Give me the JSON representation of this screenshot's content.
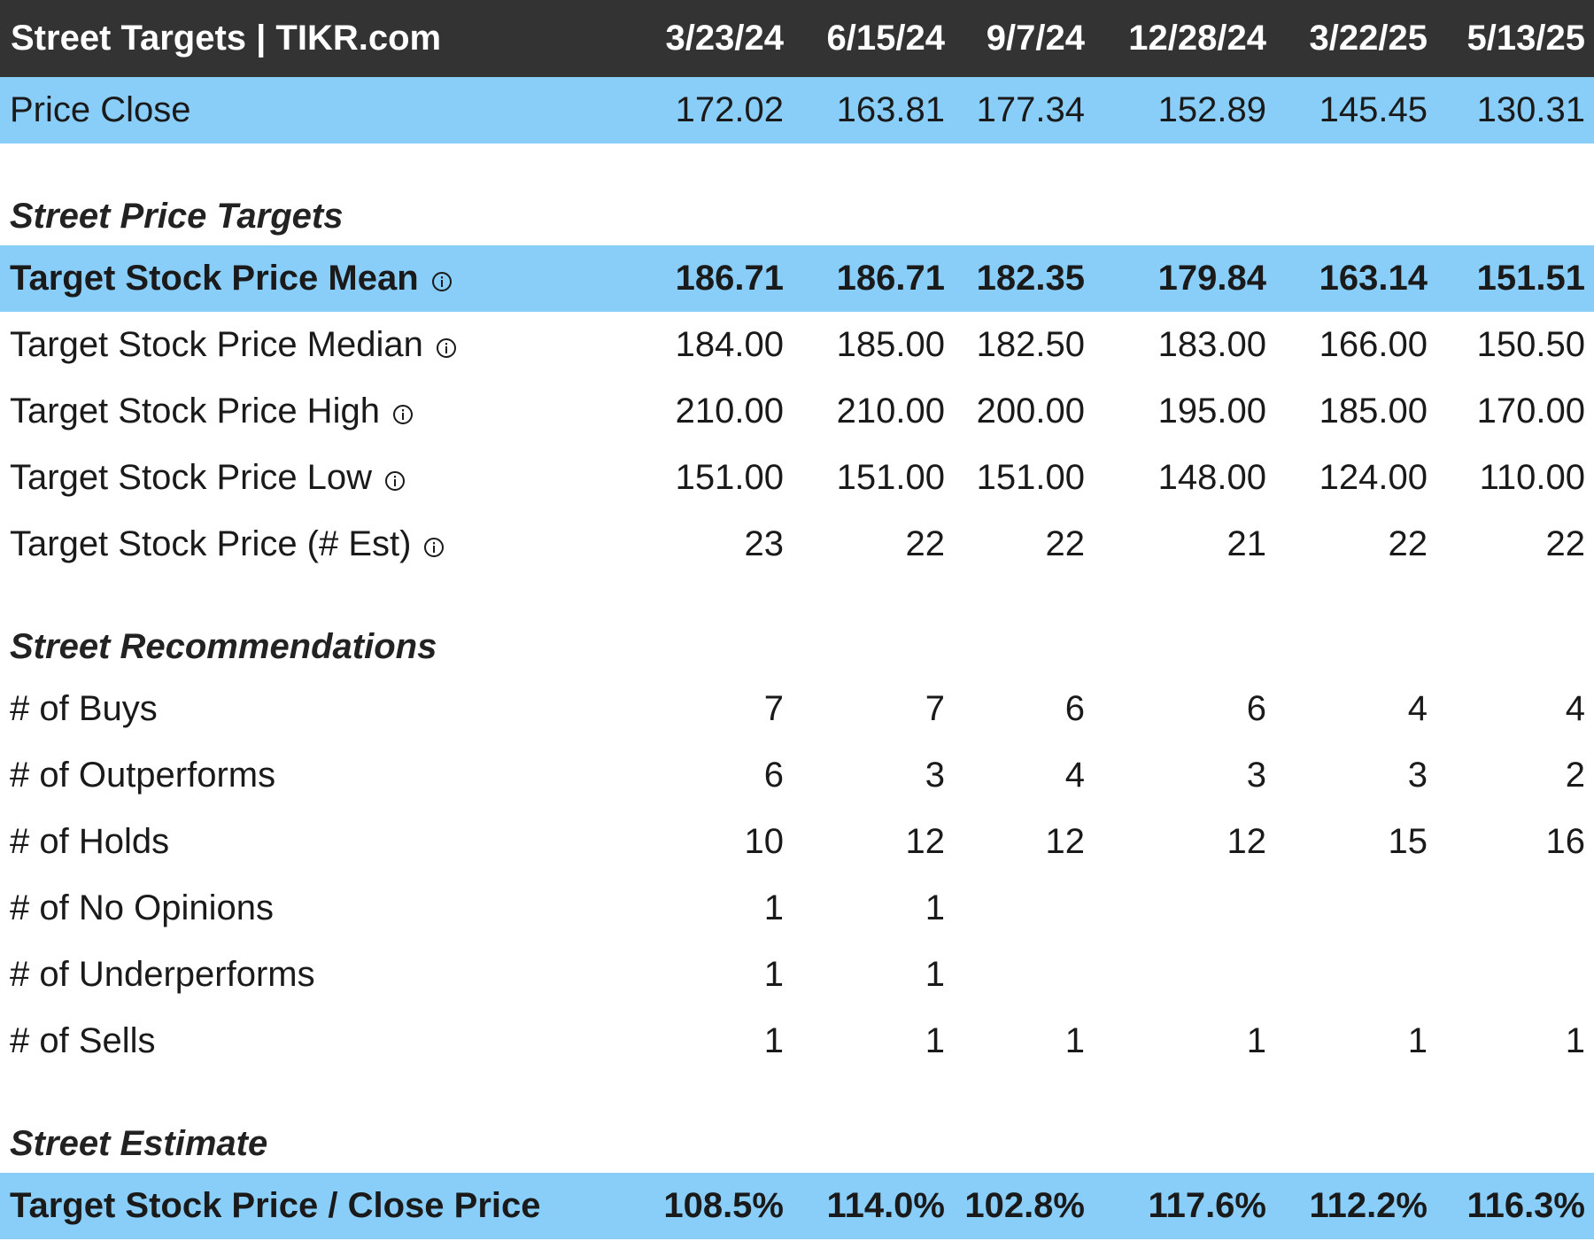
{
  "header": {
    "title": "Street Targets | TIKR.com",
    "dates": [
      "3/23/24",
      "6/15/24",
      "9/7/24",
      "12/28/24",
      "3/22/25",
      "5/13/25"
    ]
  },
  "price_close": {
    "label": "Price Close",
    "values": [
      "172.02",
      "163.81",
      "177.34",
      "152.89",
      "145.45",
      "130.31"
    ]
  },
  "sections": {
    "price_targets": "Street Price Targets",
    "recommendations": "Street Recommendations",
    "estimate": "Street Estimate"
  },
  "price_targets": [
    {
      "label": "Target Stock Price Mean",
      "values": [
        "186.71",
        "186.71",
        "182.35",
        "179.84",
        "163.14",
        "151.51"
      ],
      "icon": "info-icon"
    },
    {
      "label": "Target Stock Price Median",
      "values": [
        "184.00",
        "185.00",
        "182.50",
        "183.00",
        "166.00",
        "150.50"
      ],
      "icon": "info-icon"
    },
    {
      "label": "Target Stock Price High",
      "values": [
        "210.00",
        "210.00",
        "200.00",
        "195.00",
        "185.00",
        "170.00"
      ],
      "icon": "info-icon"
    },
    {
      "label": "Target Stock Price Low",
      "values": [
        "151.00",
        "151.00",
        "151.00",
        "148.00",
        "124.00",
        "110.00"
      ],
      "icon": "info-icon"
    },
    {
      "label": "Target Stock Price (# Est)",
      "values": [
        "23",
        "22",
        "22",
        "21",
        "22",
        "22"
      ],
      "icon": "info-icon"
    }
  ],
  "recommendations": [
    {
      "label": "# of Buys",
      "values": [
        "7",
        "7",
        "6",
        "6",
        "4",
        "4"
      ]
    },
    {
      "label": "# of Outperforms",
      "values": [
        "6",
        "3",
        "4",
        "3",
        "3",
        "2"
      ]
    },
    {
      "label": "# of Holds",
      "values": [
        "10",
        "12",
        "12",
        "12",
        "15",
        "16"
      ]
    },
    {
      "label": "# of No Opinions",
      "values": [
        "1",
        "1",
        "",
        "",
        "",
        ""
      ]
    },
    {
      "label": "# of Underperforms",
      "values": [
        "1",
        "1",
        "",
        "",
        "",
        ""
      ]
    },
    {
      "label": "# of Sells",
      "values": [
        "1",
        "1",
        "1",
        "1",
        "1",
        "1"
      ]
    }
  ],
  "estimate": {
    "label": "Target Stock Price / Close Price",
    "values": [
      "108.5%",
      "114.0%",
      "102.8%",
      "117.6%",
      "112.2%",
      "116.3%"
    ]
  },
  "colors": {
    "header_bg": "#333333",
    "highlight_bg": "#89cdf9",
    "text": "#1a1a1a"
  }
}
